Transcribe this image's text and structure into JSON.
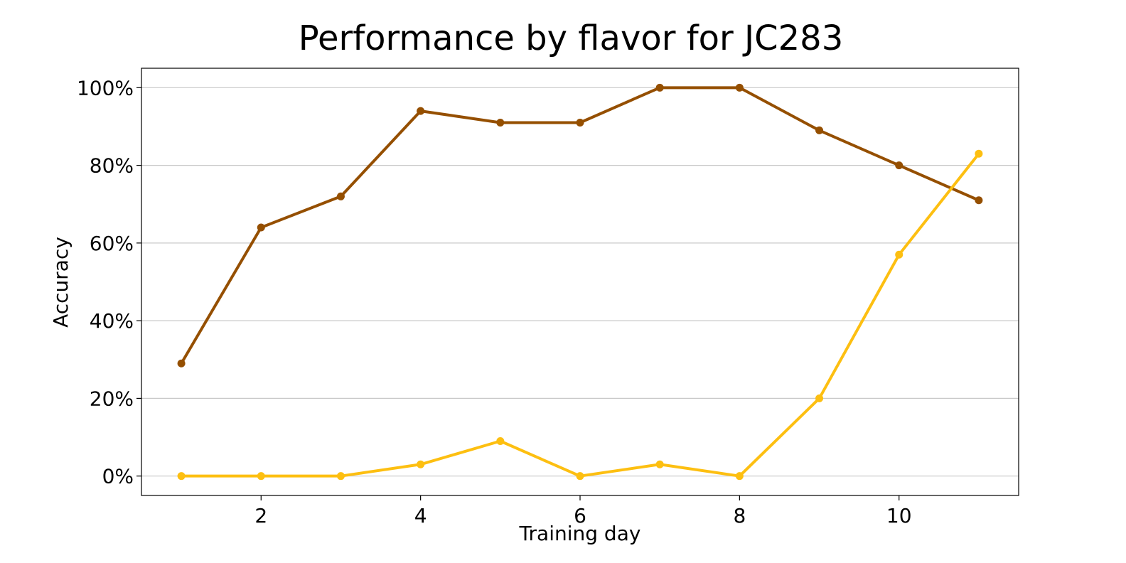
{
  "chart_data": {
    "type": "line",
    "title": "Performance by flavor for JC283",
    "xlabel": "Training day",
    "ylabel": "Accuracy",
    "x": [
      1,
      2,
      3,
      4,
      5,
      6,
      7,
      8,
      9,
      10,
      11
    ],
    "xlim": [
      0.5,
      11.5
    ],
    "ylim": [
      -5,
      105
    ],
    "xticks": [
      2,
      4,
      6,
      8,
      10
    ],
    "xtick_labels": [
      "2",
      "4",
      "6",
      "8",
      "10"
    ],
    "yticks": [
      0,
      20,
      40,
      60,
      80,
      100
    ],
    "ytick_labels": [
      "0%",
      "20%",
      "40%",
      "60%",
      "80%",
      "100%"
    ],
    "grid": "horizontal",
    "legend": "none",
    "series": [
      {
        "color": "#954f00",
        "values": [
          29,
          64,
          72,
          94,
          91,
          91,
          100,
          100,
          89,
          80,
          71
        ]
      },
      {
        "color": "#fdbf11",
        "values": [
          0,
          0,
          0,
          3,
          9,
          0,
          3,
          0,
          20,
          57,
          83
        ]
      }
    ]
  }
}
